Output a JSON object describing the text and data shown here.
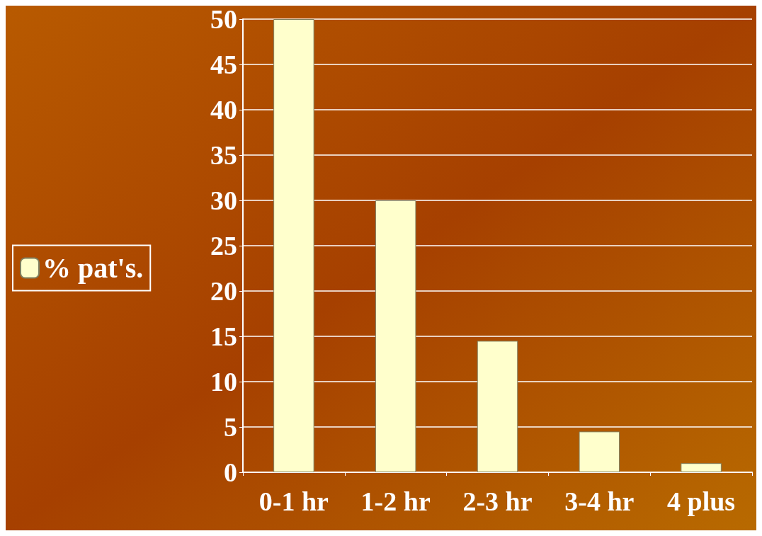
{
  "chart_data": {
    "type": "bar",
    "categories": [
      "0-1 hr",
      "1-2 hr",
      "2-3 hr",
      "3-4 hr",
      "4 plus"
    ],
    "series": [
      {
        "name": "% pat's.",
        "color": "#ffffcc",
        "values": [
          50,
          30,
          14.5,
          4.5,
          1
        ]
      }
    ],
    "ylim": [
      0,
      50
    ],
    "yticks": [
      0,
      5,
      10,
      15,
      20,
      25,
      30,
      35,
      40,
      45,
      50
    ],
    "grid": "y",
    "legend": "left"
  }
}
